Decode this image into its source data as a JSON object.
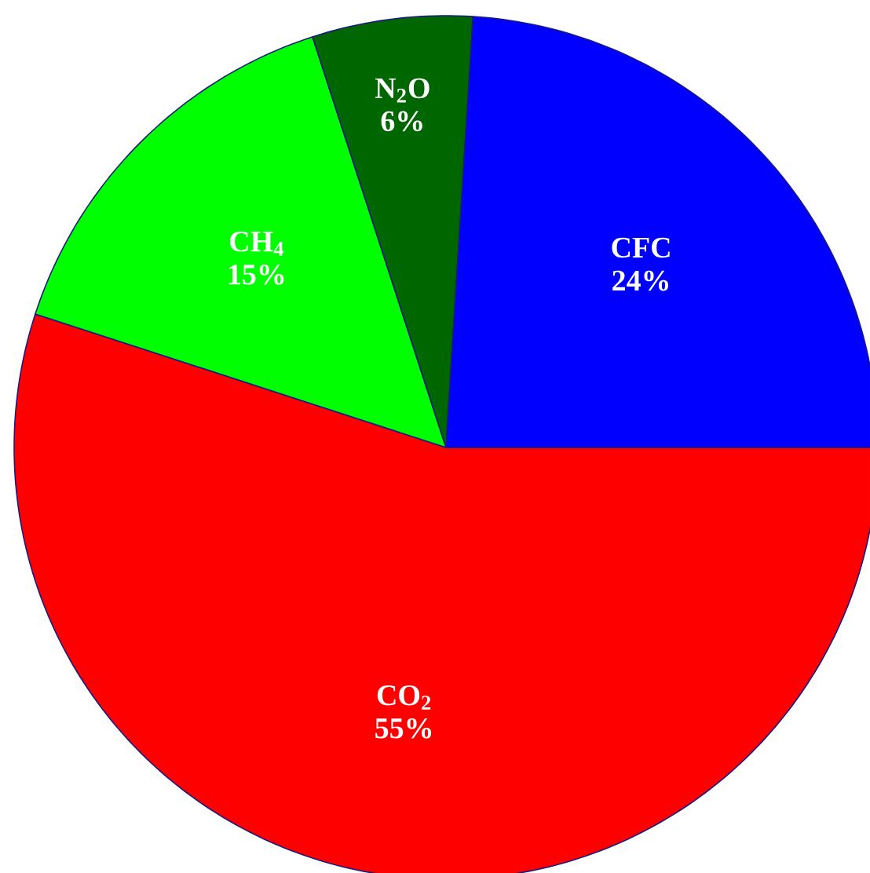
{
  "chart_data": {
    "type": "pie",
    "categories": [
      "CO$_{2}$",
      "CH$_{4}$",
      "N$_{2}$O",
      "CFC"
    ],
    "values": [
      55,
      15,
      6,
      24
    ],
    "colors": [
      "#ff0000",
      "#00ff00",
      "#006600",
      "#0000ff"
    ],
    "value_labels": [
      "55%",
      "15%",
      "6%",
      "24%"
    ]
  }
}
